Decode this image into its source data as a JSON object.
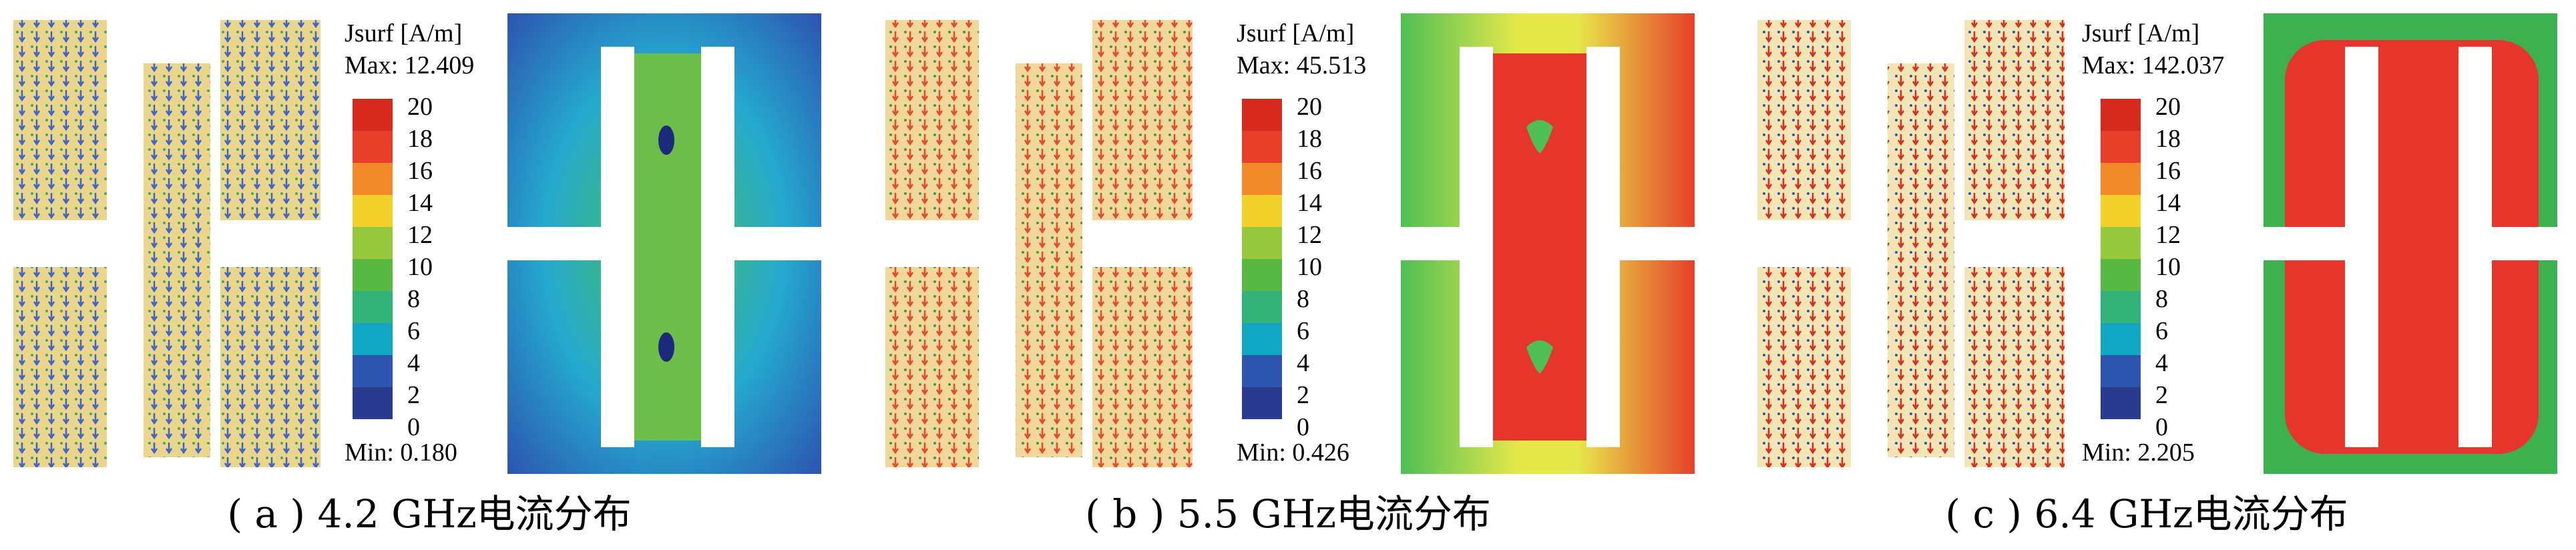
{
  "palette": [
    "#2a3a8f",
    "#2d55b0",
    "#12a8c4",
    "#32b37a",
    "#57b843",
    "#97c93c",
    "#f2d12a",
    "#f38a2a",
    "#e6402a",
    "#d62a1e"
  ],
  "scale_ticks": [
    "20",
    "18",
    "16",
    "14",
    "12",
    "10",
    "8",
    "6",
    "4",
    "2",
    "0"
  ],
  "panels": [
    {
      "quantity_label": "Jsurf [A/m]",
      "max_label": "Max: 12.409",
      "min_label": "Min: 0.180",
      "caption": "( a ) 4.2 GHz电流分布",
      "field_theme": "low"
    },
    {
      "quantity_label": "Jsurf [A/m]",
      "max_label": "Max: 45.513",
      "min_label": "Min: 0.426",
      "caption": "( b ) 5.5 GHz电流分布",
      "field_theme": "mid"
    },
    {
      "quantity_label": "Jsurf [A/m]",
      "max_label": "Max: 142.037",
      "min_label": "Min: 2.205",
      "caption": "( c ) 6.4 GHz电流分布",
      "field_theme": "high"
    }
  ]
}
